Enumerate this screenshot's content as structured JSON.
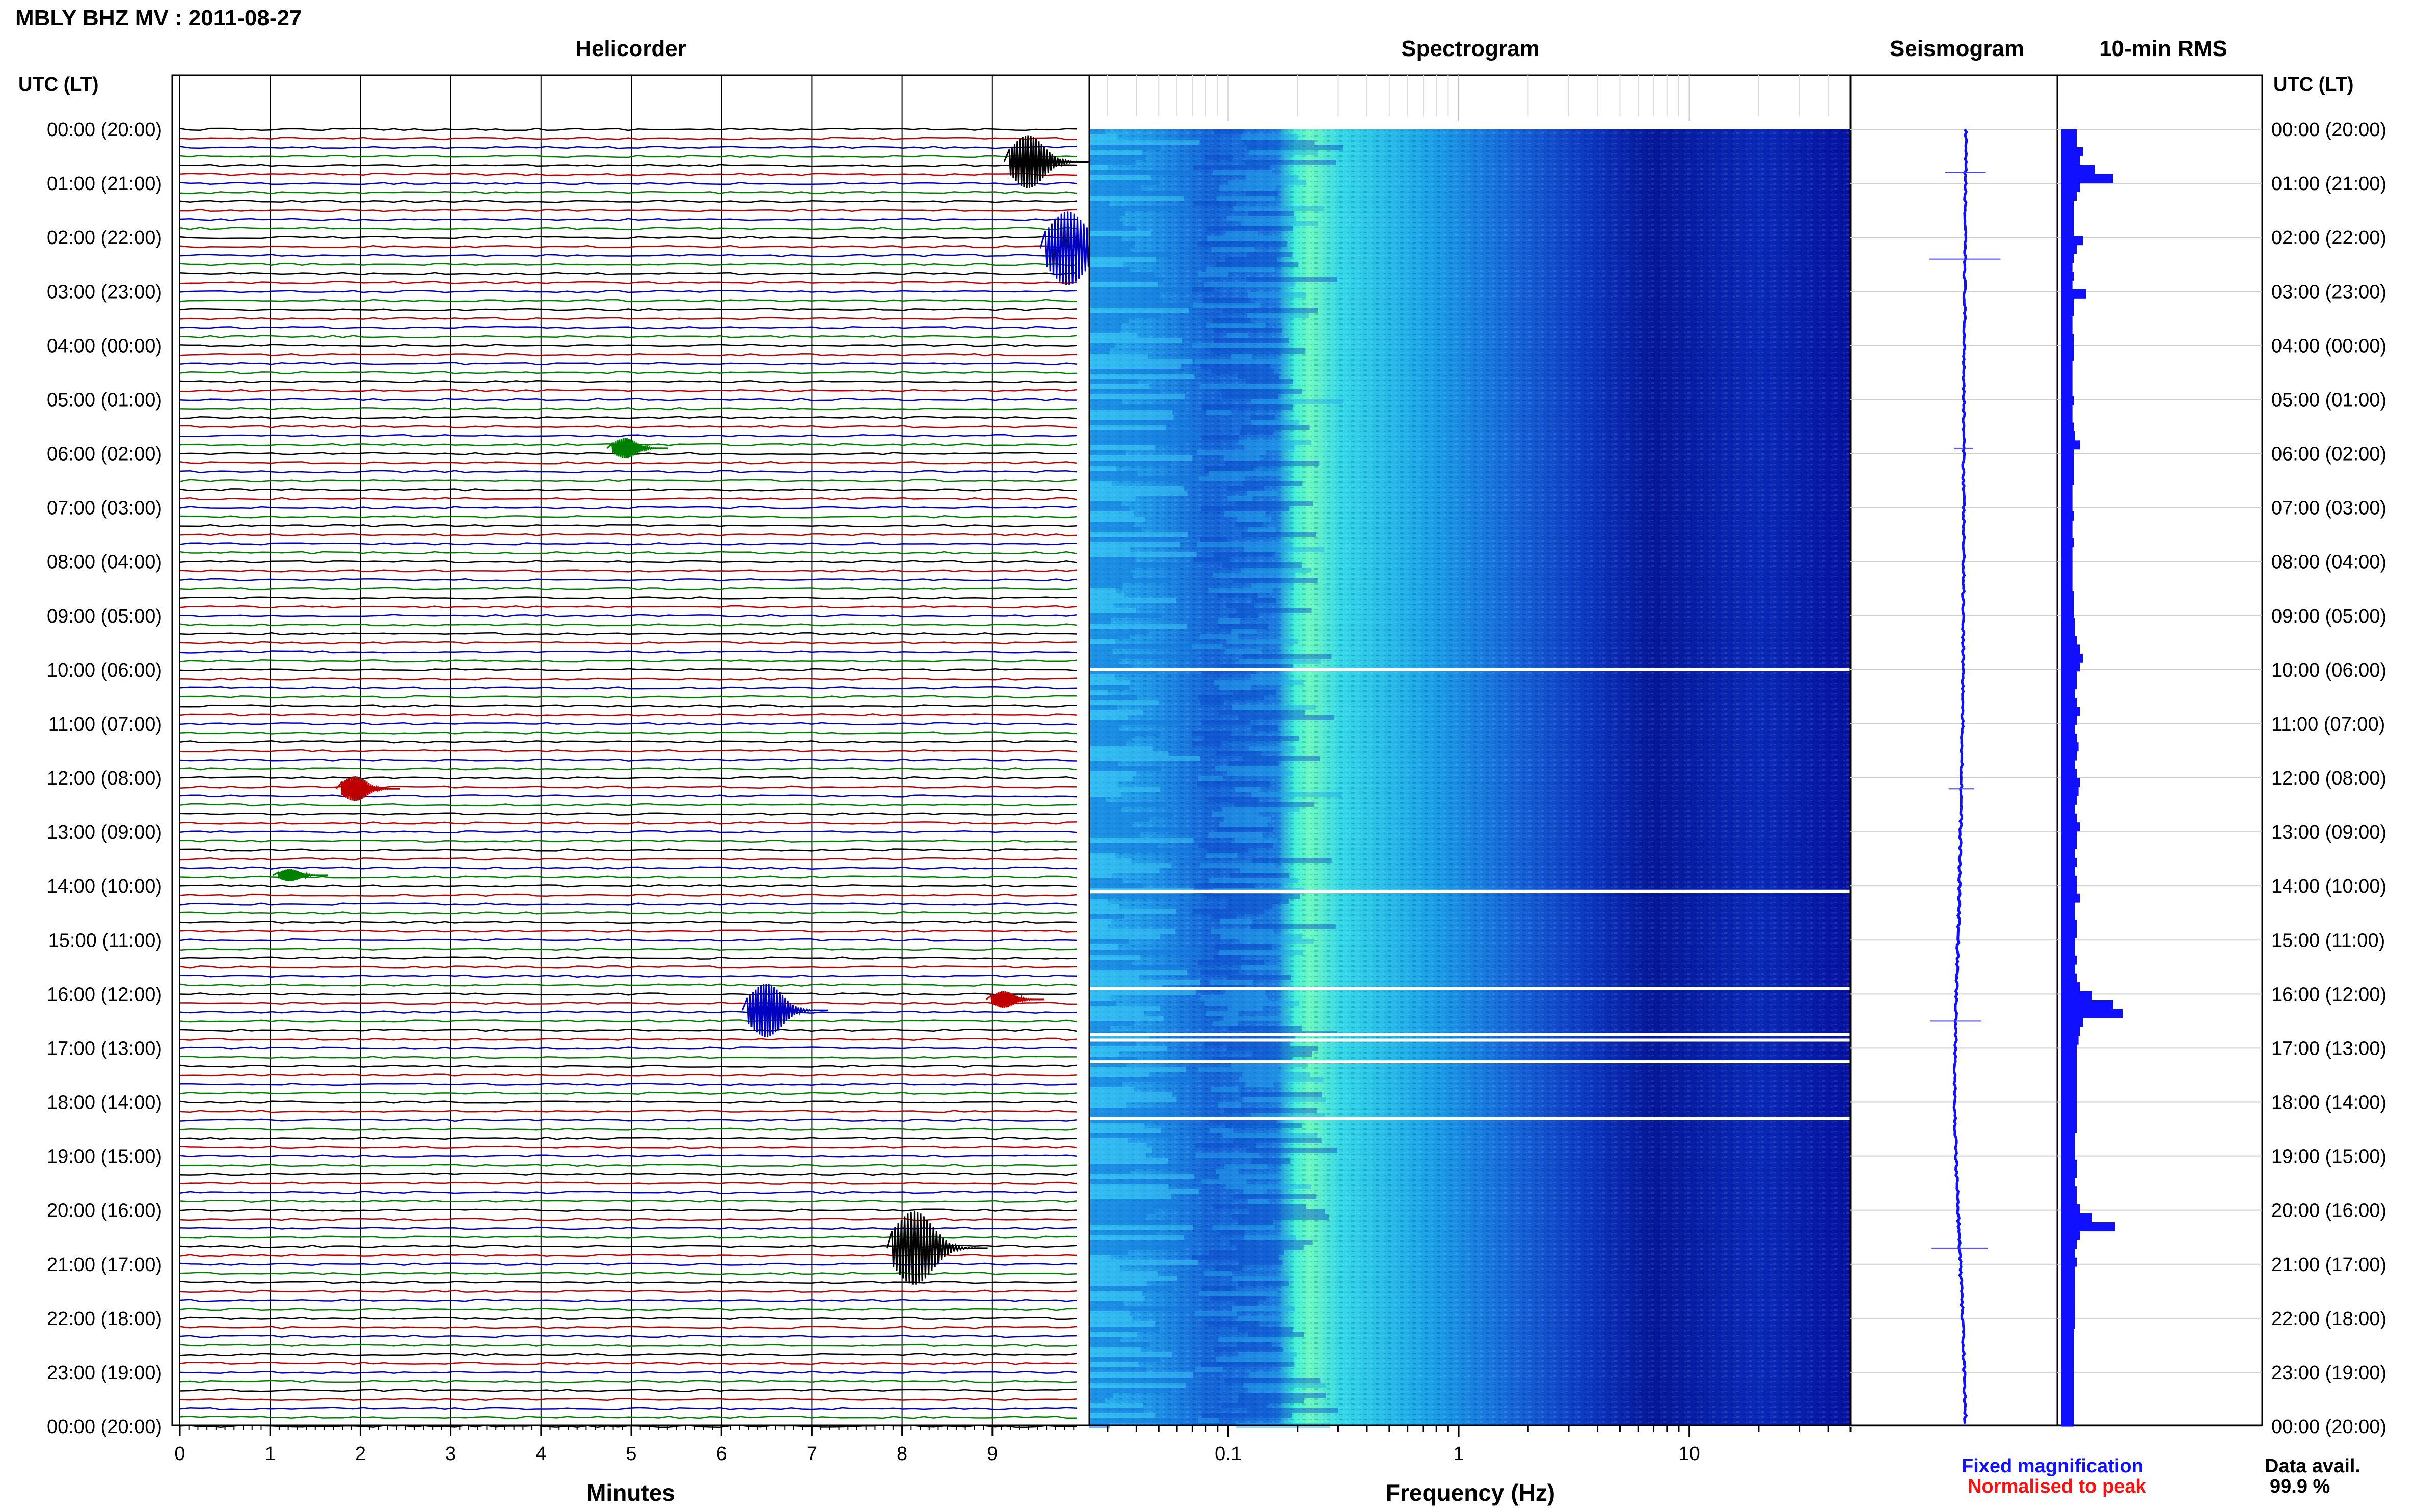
{
  "header": {
    "title": "MBLY BHZ MV : 2011-08-27",
    "utc_label_left": "UTC (LT)",
    "utc_label_right": "UTC (LT)"
  },
  "panels": {
    "helicorder": "Helicorder",
    "spectrogram": "Spectrogram",
    "seismogram": "Seismogram",
    "rms": "10-min RMS"
  },
  "axes": {
    "minutes_label": "Minutes",
    "frequency_label": "Frequency (Hz)"
  },
  "legend": {
    "fixed": "Fixed magnification",
    "normalised": "Normalised to peak",
    "fixed_color": "#1010ff",
    "normalised_color": "#ff1010"
  },
  "availability": {
    "label": "Data avail.",
    "value": "99.9 %"
  },
  "colors": {
    "trace_cycle": [
      "#000000",
      "#c00000",
      "#0000c0",
      "#008000"
    ],
    "rms_bar": "#1010ff",
    "spec_low": "#00007a",
    "spec_high": "#40ffd0"
  },
  "chart_data": {
    "type": "heatmap",
    "time_labels": [
      "00:00 (20:00)",
      "01:00 (21:00)",
      "02:00 (22:00)",
      "03:00 (23:00)",
      "04:00 (00:00)",
      "05:00 (01:00)",
      "06:00 (02:00)",
      "07:00 (03:00)",
      "08:00 (04:00)",
      "09:00 (05:00)",
      "10:00 (06:00)",
      "11:00 (07:00)",
      "12:00 (08:00)",
      "13:00 (09:00)",
      "14:00 (10:00)",
      "15:00 (11:00)",
      "16:00 (12:00)",
      "17:00 (13:00)",
      "18:00 (14:00)",
      "19:00 (15:00)",
      "20:00 (16:00)",
      "21:00 (17:00)",
      "22:00 (18:00)",
      "23:00 (19:00)",
      "00:00 (20:00)"
    ],
    "minute_ticks": [
      "0",
      "1",
      "2",
      "3",
      "4",
      "5",
      "6",
      "7",
      "8",
      "9"
    ],
    "minute_range": [
      0,
      10
    ],
    "frequency_ticks": [
      {
        "value": 0.1,
        "label": "0.1"
      },
      {
        "value": 1,
        "label": "1"
      },
      {
        "value": 10,
        "label": "10"
      }
    ],
    "frequency_range": [
      0.025,
      50
    ],
    "helicorder_events": [
      {
        "hour": 0.6,
        "minute": 9.3,
        "amp": 1.3,
        "color_index": 0
      },
      {
        "hour": 2.2,
        "minute": 9.7,
        "amp": 1.8,
        "color_index": 2
      },
      {
        "hour": 5.9,
        "minute": 4.9,
        "amp": 0.5,
        "color_index": 3
      },
      {
        "hour": 12.2,
        "minute": 1.9,
        "amp": 0.6,
        "color_index": 1
      },
      {
        "hour": 13.8,
        "minute": 1.2,
        "amp": 0.3,
        "color_index": 3
      },
      {
        "hour": 16.1,
        "minute": 9.1,
        "amp": 0.4,
        "color_index": 1
      },
      {
        "hour": 16.3,
        "minute": 6.4,
        "amp": 1.3,
        "color_index": 2
      },
      {
        "hour": 20.7,
        "minute": 8.0,
        "amp": 1.8,
        "color_index": 0
      }
    ],
    "spectrogram_gaps_hours": [
      10.0,
      14.1,
      15.9,
      16.75,
      16.85,
      17.25,
      18.3
    ],
    "rms_values": [
      0.25,
      0.25,
      0.35,
      0.3,
      0.55,
      0.85,
      0.3,
      0.25,
      0.2,
      0.2,
      0.2,
      0.2,
      0.35,
      0.25,
      0.2,
      0.18,
      0.2,
      0.18,
      0.4,
      0.2,
      0.2,
      0.18,
      0.18,
      0.2,
      0.2,
      0.2,
      0.18,
      0.18,
      0.18,
      0.18,
      0.2,
      0.18,
      0.18,
      0.2,
      0.22,
      0.3,
      0.2,
      0.2,
      0.2,
      0.2,
      0.18,
      0.18,
      0.18,
      0.2,
      0.18,
      0.18,
      0.2,
      0.18,
      0.18,
      0.18,
      0.18,
      0.18,
      0.2,
      0.2,
      0.2,
      0.22,
      0.22,
      0.25,
      0.3,
      0.35,
      0.3,
      0.25,
      0.25,
      0.22,
      0.25,
      0.3,
      0.25,
      0.22,
      0.25,
      0.28,
      0.25,
      0.22,
      0.25,
      0.3,
      0.28,
      0.25,
      0.22,
      0.25,
      0.3,
      0.25,
      0.25,
      0.22,
      0.25,
      0.22,
      0.25,
      0.25,
      0.3,
      0.22,
      0.22,
      0.25,
      0.25,
      0.22,
      0.22,
      0.25,
      0.22,
      0.25,
      0.3,
      0.5,
      0.85,
      1.0,
      0.35,
      0.3,
      0.28,
      0.25,
      0.25,
      0.25,
      0.25,
      0.25,
      0.25,
      0.25,
      0.25,
      0.25,
      0.25,
      0.22,
      0.22,
      0.22,
      0.25,
      0.25,
      0.22,
      0.25,
      0.25,
      0.3,
      0.5,
      0.88,
      0.3,
      0.25,
      0.22,
      0.25,
      0.22,
      0.22,
      0.22,
      0.22,
      0.22,
      0.22,
      0.22,
      0.2,
      0.2,
      0.2,
      0.2,
      0.2,
      0.2,
      0.2,
      0.2,
      0.2,
      0.2,
      0.2
    ],
    "seismogram_drift": [
      [
        0,
        0
      ],
      [
        3,
        -2
      ],
      [
        6,
        -4
      ],
      [
        8,
        -4
      ],
      [
        10,
        -5
      ],
      [
        12,
        -8
      ],
      [
        14,
        -12
      ],
      [
        16,
        -18
      ],
      [
        18,
        -22
      ],
      [
        20,
        -15
      ],
      [
        22,
        -6
      ],
      [
        24,
        0
      ]
    ],
    "seismogram_spikes_hours": [
      [
        0.8,
        40
      ],
      [
        2.4,
        70
      ],
      [
        5.9,
        18
      ],
      [
        12.2,
        25
      ],
      [
        16.5,
        50
      ],
      [
        20.7,
        55
      ]
    ],
    "grid": true
  }
}
